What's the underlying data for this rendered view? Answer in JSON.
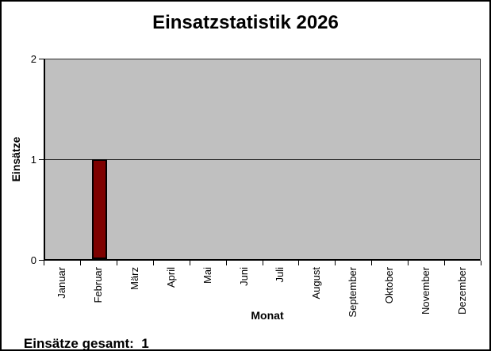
{
  "window": {
    "background": "#ffffff",
    "border_color": "#000000"
  },
  "chart_data": {
    "type": "bar",
    "title": "Einsatzstatistik 2026",
    "xlabel": "Monat",
    "ylabel": "Einsätze",
    "categories": [
      "Januar",
      "Februar",
      "März",
      "April",
      "Mai",
      "Juni",
      "Juli",
      "August",
      "September",
      "Oktober",
      "November",
      "Dezember"
    ],
    "values": [
      0,
      1,
      0,
      0,
      0,
      0,
      0,
      0,
      0,
      0,
      0,
      0
    ],
    "ylim": [
      0,
      2
    ],
    "yticks": [
      0,
      1,
      2
    ],
    "grid": "horizontal gridlines at interior y ticks",
    "legend_position": "none",
    "plot_bg_color": "#c0c0c0",
    "bar_color": "#7e0100",
    "bar_border_color": "#000000",
    "gridline_color": "#1a1a1a"
  },
  "footer": {
    "label": "Einsätze gesamt:",
    "value": "1"
  }
}
